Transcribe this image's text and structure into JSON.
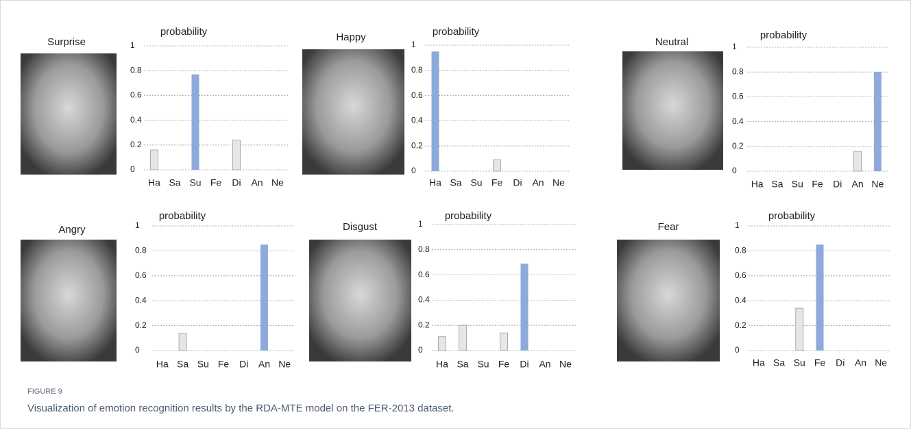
{
  "chart_data": [
    {
      "type": "bar",
      "image_label": "Surprise",
      "title": "probability",
      "categories": [
        "Ha",
        "Sa",
        "Su",
        "Fe",
        "Di",
        "An",
        "Ne"
      ],
      "values": [
        0.16,
        0,
        0.77,
        0,
        0.24,
        0,
        0
      ],
      "colors": [
        "#e6e6e6",
        "#e6e6e6",
        "#8eaadb",
        "#e6e6e6",
        "#e6e6e6",
        "#e6e6e6",
        "#e6e6e6"
      ],
      "ylim": [
        0,
        1
      ],
      "yticks": [
        0,
        0.2,
        0.4,
        0.6,
        0.8,
        1
      ],
      "grid": true
    },
    {
      "type": "bar",
      "image_label": "Happy",
      "title": "probability",
      "categories": [
        "Ha",
        "Sa",
        "Su",
        "Fe",
        "Di",
        "An",
        "Ne"
      ],
      "values": [
        0.95,
        0,
        0,
        0.09,
        0,
        0,
        0
      ],
      "colors": [
        "#8eaadb",
        "#e6e6e6",
        "#e6e6e6",
        "#e6e6e6",
        "#e6e6e6",
        "#e6e6e6",
        "#e6e6e6"
      ],
      "ylim": [
        0,
        1
      ],
      "yticks": [
        0,
        0.2,
        0.4,
        0.6,
        0.8,
        1
      ],
      "grid": true
    },
    {
      "type": "bar",
      "image_label": "Neutral",
      "title": "probability",
      "categories": [
        "Ha",
        "Sa",
        "Su",
        "Fe",
        "Di",
        "An",
        "Ne"
      ],
      "values": [
        0,
        0,
        0,
        0,
        0,
        0.16,
        0.8
      ],
      "colors": [
        "#e6e6e6",
        "#e6e6e6",
        "#e6e6e6",
        "#e6e6e6",
        "#e6e6e6",
        "#e6e6e6",
        "#8eaadb"
      ],
      "ylim": [
        0,
        1
      ],
      "yticks": [
        0,
        0.2,
        0.4,
        0.6,
        0.8,
        1
      ],
      "grid": true
    },
    {
      "type": "bar",
      "image_label": "Angry",
      "title": "probability",
      "categories": [
        "Ha",
        "Sa",
        "Su",
        "Fe",
        "Di",
        "An",
        "Ne"
      ],
      "values": [
        0,
        0.14,
        0,
        0,
        0,
        0.85,
        0
      ],
      "colors": [
        "#e6e6e6",
        "#e6e6e6",
        "#e6e6e6",
        "#e6e6e6",
        "#e6e6e6",
        "#8eaadb",
        "#e6e6e6"
      ],
      "ylim": [
        0,
        1
      ],
      "yticks": [
        0,
        0.2,
        0.4,
        0.6,
        0.8,
        1
      ],
      "grid": true
    },
    {
      "type": "bar",
      "image_label": "Disgust",
      "title": "probability",
      "categories": [
        "Ha",
        "Sa",
        "Su",
        "Fe",
        "Di",
        "An",
        "Ne"
      ],
      "values": [
        0.11,
        0.2,
        0,
        0.14,
        0.69,
        0,
        0
      ],
      "colors": [
        "#e6e6e6",
        "#e6e6e6",
        "#e6e6e6",
        "#e6e6e6",
        "#8eaadb",
        "#e6e6e6",
        "#e6e6e6"
      ],
      "ylim": [
        0,
        1
      ],
      "yticks": [
        0,
        0.2,
        0.4,
        0.6,
        0.8,
        1
      ],
      "grid": true
    },
    {
      "type": "bar",
      "image_label": "Fear",
      "title": "probability",
      "categories": [
        "Ha",
        "Sa",
        "Su",
        "Fe",
        "Di",
        "An",
        "Ne"
      ],
      "values": [
        0,
        0,
        0.34,
        0.85,
        0,
        0,
        0
      ],
      "colors": [
        "#e6e6e6",
        "#e6e6e6",
        "#e6e6e6",
        "#8eaadb",
        "#e6e6e6",
        "#e6e6e6",
        "#e6e6e6"
      ],
      "ylim": [
        0,
        1
      ],
      "yticks": [
        0,
        0.2,
        0.4,
        0.6,
        0.8,
        1
      ],
      "grid": true
    }
  ],
  "figure": {
    "label": "FIGURE 9",
    "caption": "Visualization of emotion recognition results by the RDA-MTE model on the FER-2013 dataset."
  }
}
